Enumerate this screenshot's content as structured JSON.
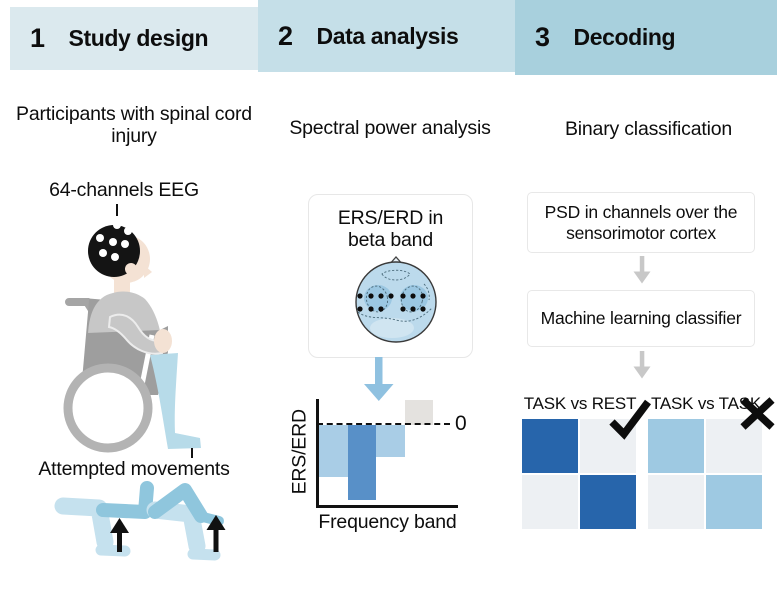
{
  "header": {
    "steps": [
      {
        "number": "1",
        "label": "Study design",
        "bg": "#dbe9ee"
      },
      {
        "number": "2",
        "label": "Data analysis",
        "bg": "#c5dfe8"
      },
      {
        "number": "3",
        "label": "Decoding",
        "bg": "#a8d0dd"
      }
    ]
  },
  "study": {
    "heading": "Participants with spinal cord injury",
    "eeg_label": "64-channels EEG",
    "movements_label": "Attempted movements"
  },
  "analysis": {
    "heading": "Spectral power analysis",
    "card_line1": "ERS/ERD in",
    "card_line2": "beta band",
    "zero_label": "0",
    "ylabel": "ERS/ERD",
    "xlabel": "Frequency band"
  },
  "decoding": {
    "heading": "Binary classification",
    "card1": "PSD in channels over the sensorimotor cortex",
    "card2": "Machine learning classifier",
    "matrices": [
      {
        "label": "TASK vs REST",
        "result": "correct",
        "cells": [
          [
            "#2765ab",
            "#edf0f3"
          ],
          [
            "#edf0f3",
            "#2765ab"
          ]
        ]
      },
      {
        "label": "TASK vs TASK",
        "result": "incorrect",
        "cells": [
          [
            "#9ec9e2",
            "#edf0f3"
          ],
          [
            "#edf0f3",
            "#9ec9e2"
          ]
        ]
      }
    ]
  },
  "chart_data": {
    "type": "bar",
    "xlabel": "Frequency band",
    "ylabel": "ERS/ERD",
    "zero_label": "0",
    "values": [
      -0.65,
      -0.94,
      -0.4,
      0.31
    ],
    "colors": [
      "#a9cde6",
      "#5890c8",
      "#a9cde6",
      "#e4e2df"
    ],
    "ylim": [
      -1.05,
      0.4
    ],
    "grid": false
  },
  "colors": {
    "accent_arrow_blue": "#8fc1e0",
    "flow_arrow_gray": "#c8c8c8",
    "matrix_dark_blue": "#2765ab",
    "matrix_light_blue": "#9ec9e2",
    "matrix_gray": "#edf0f3",
    "leg_pale_blue": "#c5e1ee",
    "leg_dark_blue": "#8fc6dd"
  }
}
